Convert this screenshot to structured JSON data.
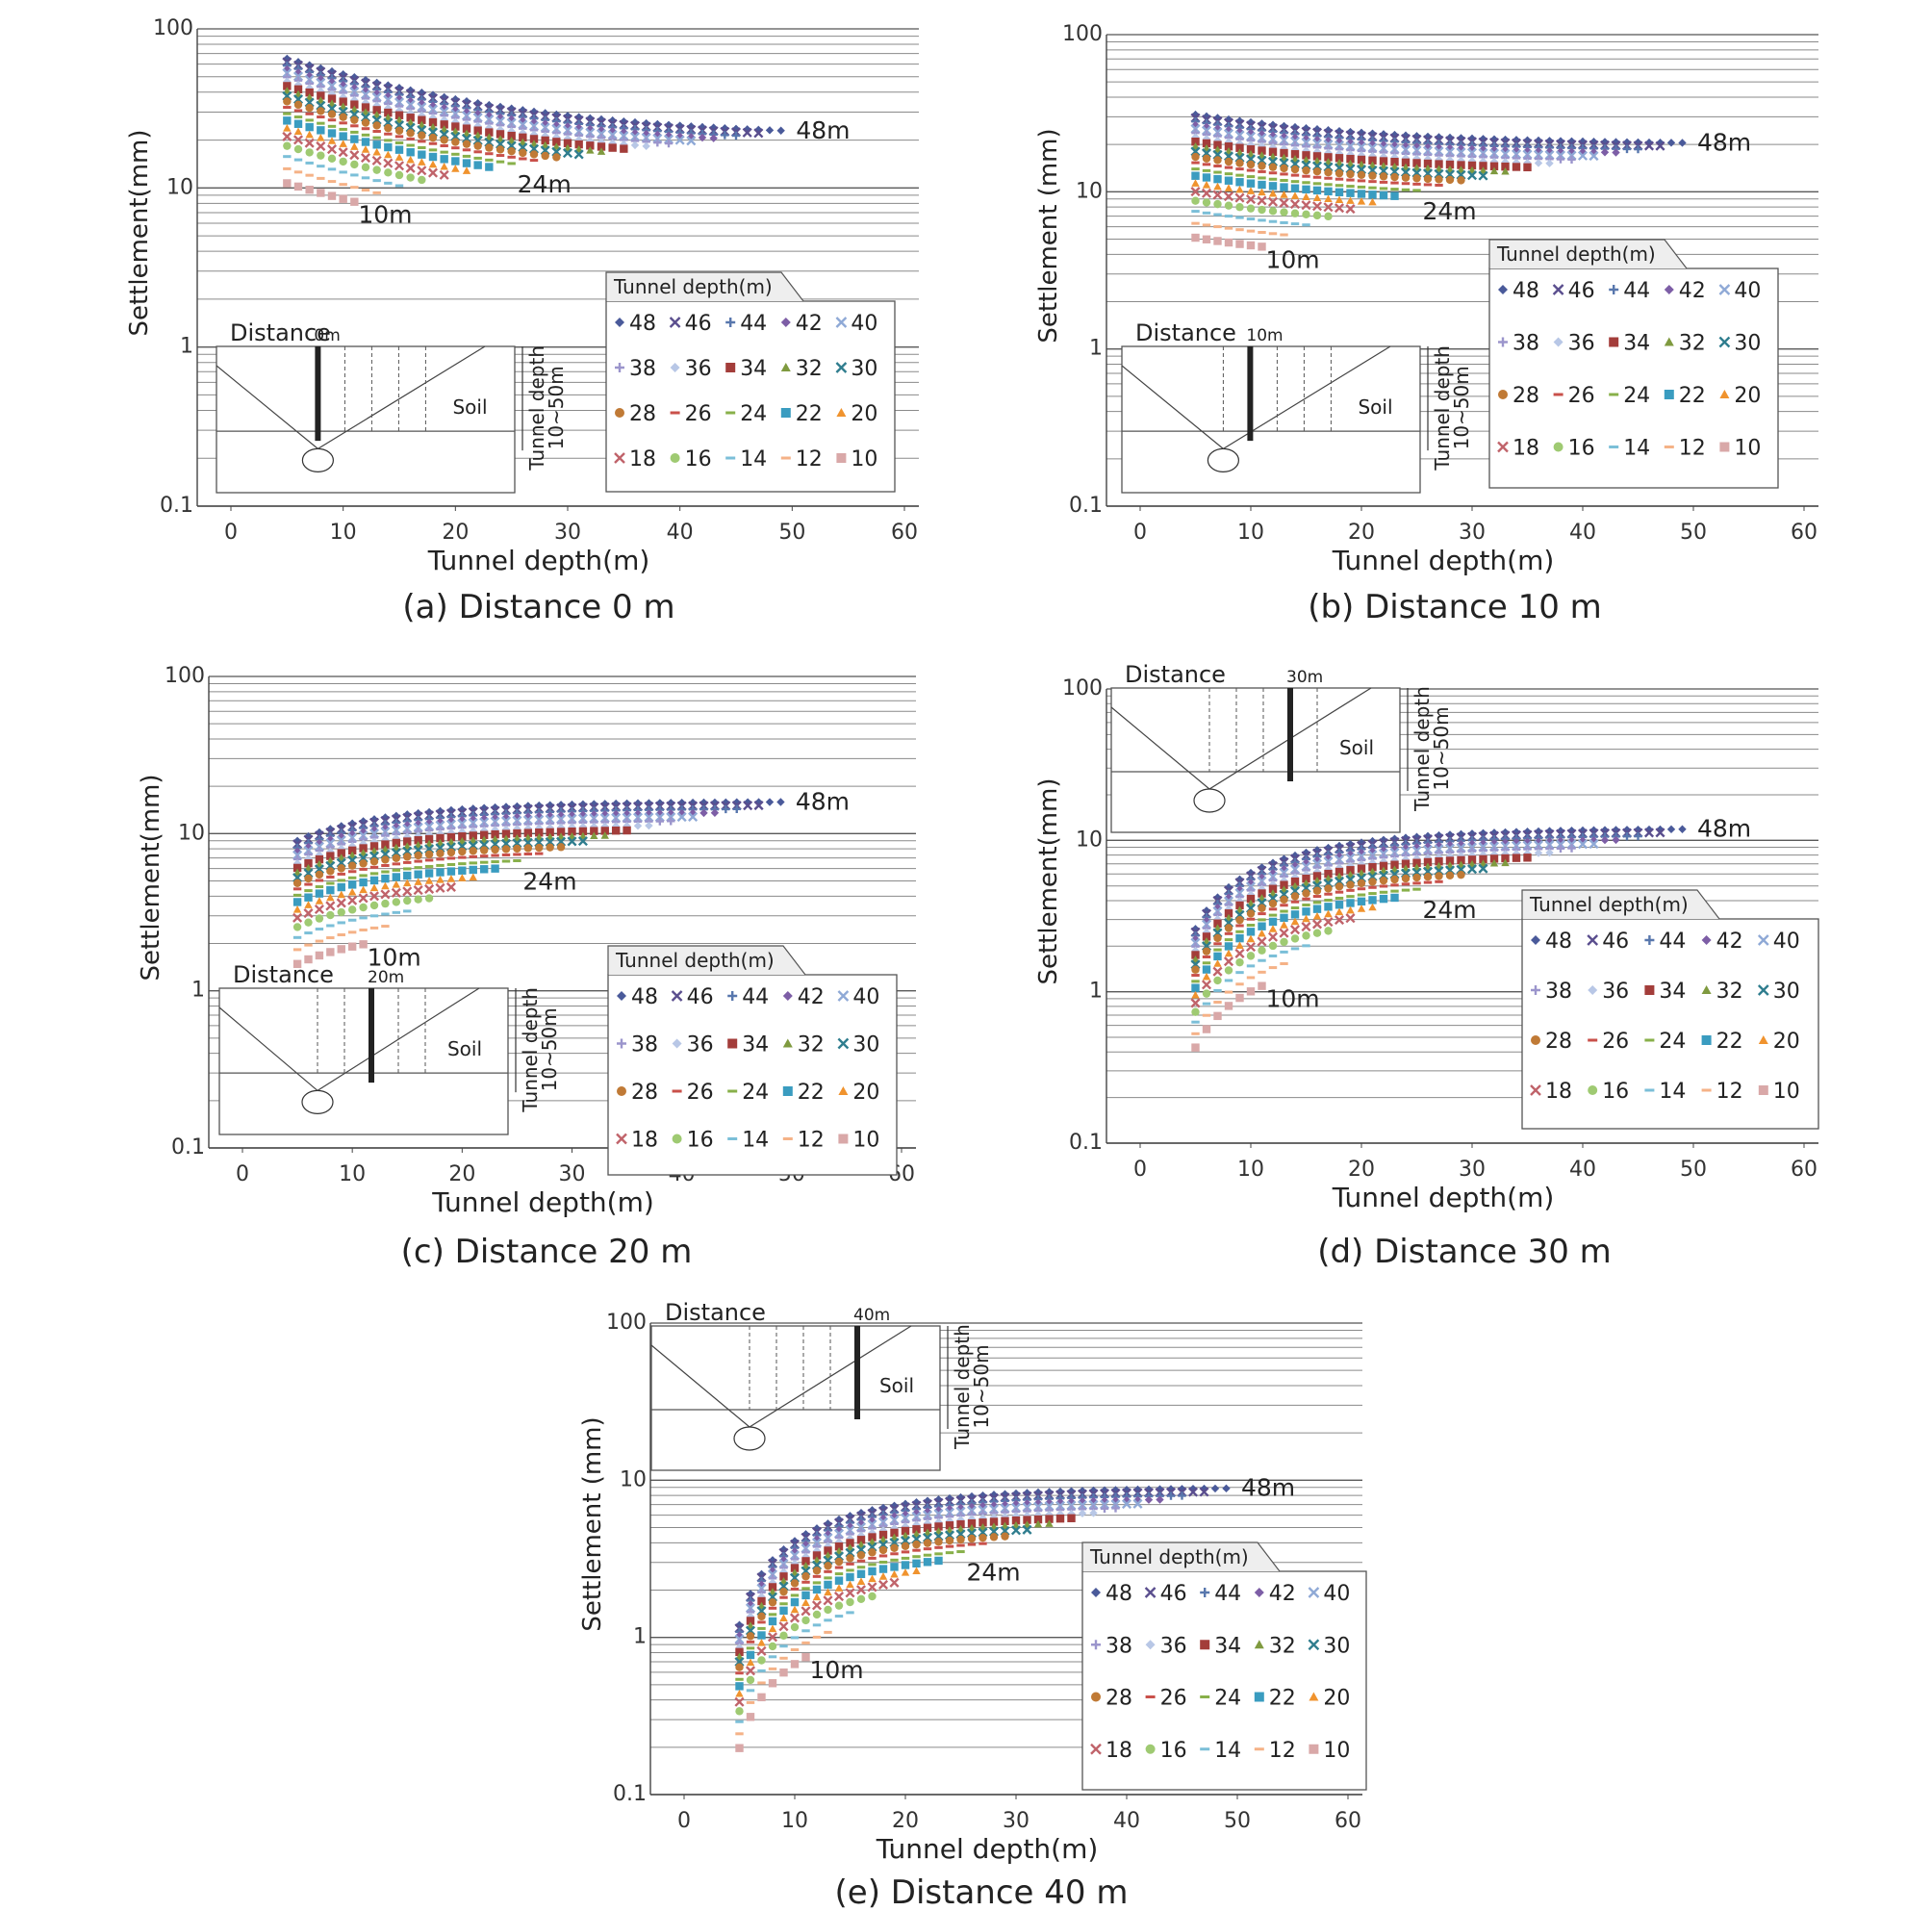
{
  "legend_title": "Tunnel depth(m)",
  "series_depths": [
    48,
    46,
    44,
    42,
    40,
    38,
    36,
    34,
    32,
    30,
    28,
    26,
    24,
    22,
    20,
    18,
    16,
    14,
    12,
    10
  ],
  "series_colors": {
    "48": "#4a5a9a",
    "46": "#5a4e8e",
    "44": "#5877ad",
    "42": "#7d5ea6",
    "40": "#8fa9d6",
    "38": "#9b95cc",
    "36": "#b8c7e6",
    "34": "#a33d3a",
    "32": "#7f9a3f",
    "30": "#2f7d8e",
    "28": "#c07a36",
    "26": "#c9504a",
    "24": "#88b04a",
    "22": "#3a9cc0",
    "20": "#f0932e",
    "18": "#c0636a",
    "16": "#9fca72",
    "14": "#7bbfd8",
    "12": "#f5b287",
    "10": "#d9a8a8"
  },
  "series_markers": {
    "48": "diamond",
    "46": "cross",
    "44": "plus",
    "42": "diamond",
    "40": "cross",
    "38": "plus",
    "36": "diamond",
    "34": "square",
    "32": "triangle",
    "30": "cross",
    "28": "circle",
    "26": "dash",
    "24": "dash",
    "22": "square",
    "20": "triangle",
    "18": "cross",
    "16": "circle",
    "14": "dash",
    "12": "dash",
    "10": "square"
  },
  "chart_data": [
    {
      "type": "scatter",
      "caption": "(a) Distance 0 m",
      "distance_label": "0m",
      "distance_m": 0,
      "xlabel": "Tunnel depth(m)",
      "ylabel": "Settlement(mm)",
      "xlim": [
        0,
        60
      ],
      "xticks": [
        "0",
        "10",
        "20",
        "30",
        "40",
        "50",
        "60"
      ],
      "ylim": [
        0.1,
        100
      ],
      "yscale": "log",
      "yticks": [
        "0.1",
        "1",
        "10",
        "100"
      ],
      "annotations": [
        "48m",
        "24m",
        "10m"
      ],
      "inset": {
        "distance_text": "Distance",
        "depth_text": "Tunnel depth",
        "depth_range": "10~50m",
        "soil": "Soil"
      },
      "legend": {
        "title": "Tunnel depth(m)",
        "placement": "lower-right"
      },
      "curve_model": {
        "y_at_5m_48": 65,
        "y_end_48": 21,
        "shape": "decreasing"
      }
    },
    {
      "type": "scatter",
      "caption": "(b) Distance 10 m",
      "distance_label": "10m",
      "distance_m": 10,
      "xlabel": "Tunnel depth(m)",
      "ylabel": "Settlement (mm)",
      "xlim": [
        0,
        60
      ],
      "xticks": [
        "0",
        "10",
        "20",
        "30",
        "40",
        "50",
        "60"
      ],
      "ylim": [
        0.1,
        100
      ],
      "yscale": "log",
      "yticks": [
        "0.1",
        "1",
        "10",
        "100"
      ],
      "annotations": [
        "48m",
        "24m",
        "10m"
      ],
      "inset": {
        "distance_text": "Distance",
        "depth_text": "Tunnel depth",
        "depth_range": "10~50m",
        "soil": "Soil"
      },
      "legend": {
        "title": "Tunnel depth(m)",
        "placement": "right"
      },
      "curve_model": {
        "y_at_5m_48": 31,
        "y_end_48": 20,
        "shape": "decreasing"
      }
    },
    {
      "type": "scatter",
      "caption": "(c) Distance 20 m",
      "distance_label": "20m",
      "distance_m": 20,
      "xlabel": "Tunnel depth(m)",
      "ylabel": "Settlement(mm)",
      "xlim": [
        0,
        60
      ],
      "xticks": [
        "0",
        "10",
        "20",
        "30",
        "40",
        "50",
        "60"
      ],
      "ylim": [
        0.1,
        100
      ],
      "yscale": "log",
      "yticks": [
        "0.1",
        "1",
        "10",
        "100"
      ],
      "annotations": [
        "48m",
        "24m",
        "10m"
      ],
      "inset": {
        "distance_text": "Distance",
        "depth_text": "Tunnel depth",
        "depth_range": "10~50m",
        "soil": "Soil"
      },
      "legend": {
        "title": "Tunnel depth(m)",
        "placement": "lower-right"
      },
      "curve_model": {
        "y_at_5m_48": 9,
        "y_end_48": 16,
        "shape": "increasing"
      }
    },
    {
      "type": "scatter",
      "caption": "(d) Distance 30 m",
      "distance_label": "30m",
      "distance_m": 30,
      "xlabel": "Tunnel depth(m)",
      "ylabel": "Settlement(mm)",
      "xlim": [
        0,
        60
      ],
      "xticks": [
        "0",
        "10",
        "20",
        "30",
        "40",
        "50",
        "60"
      ],
      "ylim": [
        0.1,
        100
      ],
      "yscale": "log",
      "yticks": [
        "0.1",
        "1",
        "10",
        "100"
      ],
      "annotations": [
        "48m",
        "24m",
        "10m"
      ],
      "inset": {
        "distance_text": "Distance",
        "depth_text": "Tunnel depth",
        "depth_range": "10~50m",
        "soil": "Soil"
      },
      "legend": {
        "title": "Tunnel depth(m)",
        "placement": "lower-right"
      },
      "curve_model": {
        "y_at_5m_48": 2.6,
        "y_end_48": 12,
        "shape": "increasing"
      }
    },
    {
      "type": "scatter",
      "caption": "(e) Distance 40 m",
      "distance_label": "40m",
      "distance_m": 40,
      "xlabel": "Tunnel depth(m)",
      "ylabel": "Settlement (mm)",
      "xlim": [
        0,
        60
      ],
      "xticks": [
        "0",
        "10",
        "20",
        "30",
        "40",
        "50",
        "60"
      ],
      "ylim": [
        0.1,
        100
      ],
      "yscale": "log",
      "yticks": [
        "0.1",
        "1",
        "10",
        "100"
      ],
      "annotations": [
        "48m",
        "24m",
        "10m"
      ],
      "inset": {
        "distance_text": "Distance",
        "depth_text": "Tunnel depth",
        "depth_range": "10~50m",
        "soil": "Soil"
      },
      "legend": {
        "title": "Tunnel depth(m)",
        "placement": "lower-right"
      },
      "curve_model": {
        "y_at_5m_48": 1.2,
        "y_end_48": 9,
        "shape": "increasing"
      }
    }
  ]
}
